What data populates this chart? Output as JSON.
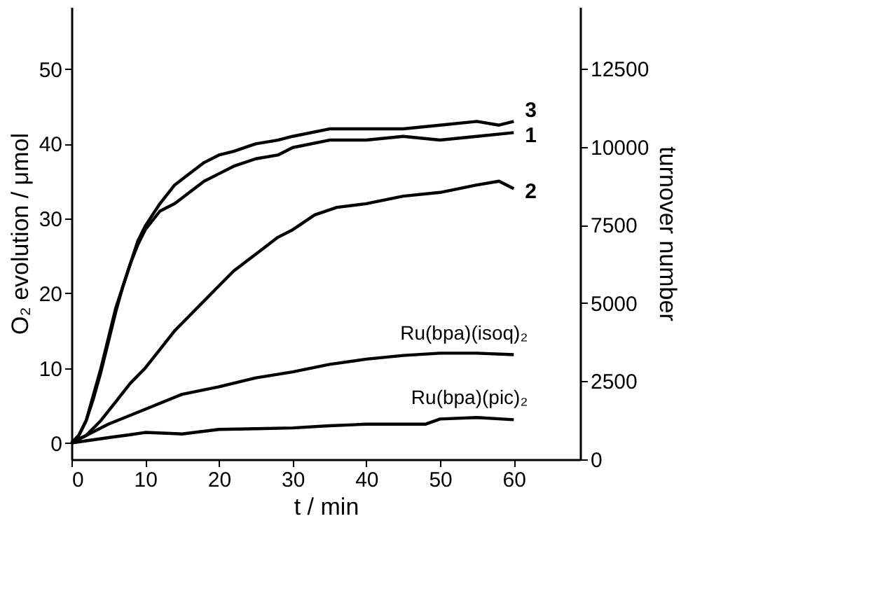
{
  "chart_data": {
    "type": "line",
    "xlabel": "t / min",
    "ylabel": "O₂ evolution / μmol",
    "y2label": "turnover number",
    "xlim": [
      0,
      69
    ],
    "xticks": [
      0,
      10,
      20,
      30,
      40,
      50,
      60
    ],
    "ylim": [
      -2.2,
      58.3
    ],
    "yticks": [
      0,
      10,
      20,
      30,
      40,
      50
    ],
    "y2lim": [
      0,
      14480
    ],
    "y2ticks": [
      0,
      2500,
      5000,
      7500,
      10000,
      12500
    ],
    "grid": false,
    "legend": false,
    "marker": "none",
    "line_style": "solid",
    "series": [
      {
        "name": "3",
        "color": "#000000",
        "x": [
          0,
          1,
          2,
          3,
          4,
          5,
          6,
          7,
          8,
          9,
          10,
          12,
          14,
          16,
          18,
          20,
          22,
          25,
          28,
          30,
          35,
          40,
          45,
          50,
          55,
          58,
          60
        ],
        "values": [
          0,
          1,
          3,
          6.5,
          10,
          14,
          18,
          21,
          24,
          27,
          29,
          32,
          34.5,
          36,
          37.5,
          38.5,
          39,
          40,
          40.5,
          41,
          42,
          42,
          42,
          42.5,
          43,
          42.5,
          43
        ]
      },
      {
        "name": "1",
        "color": "#000000",
        "x": [
          0,
          1,
          2,
          3,
          4,
          5,
          6,
          7,
          8,
          9,
          10,
          12,
          14,
          16,
          18,
          20,
          22,
          25,
          28,
          30,
          35,
          40,
          45,
          50,
          55,
          60
        ],
        "values": [
          0,
          1,
          3,
          6,
          9.5,
          13.5,
          17.5,
          21,
          24,
          26.5,
          28.5,
          31,
          32,
          33.5,
          35,
          36,
          37,
          38,
          38.5,
          39.5,
          40.5,
          40.5,
          41,
          40.5,
          41,
          41.5
        ]
      },
      {
        "name": "2",
        "color": "#000000",
        "x": [
          0,
          2,
          4,
          6,
          8,
          10,
          12,
          14,
          16,
          18,
          20,
          22,
          24,
          26,
          28,
          30,
          33,
          36,
          40,
          45,
          50,
          55,
          58,
          60
        ],
        "values": [
          0,
          1,
          3,
          5.5,
          8,
          10,
          12.5,
          15,
          17,
          19,
          21,
          23,
          24.5,
          26,
          27.5,
          28.5,
          30.5,
          31.5,
          32,
          33,
          33.5,
          34.5,
          35,
          34
        ]
      },
      {
        "name": "Ru(bpa)(isoq)₂",
        "color": "#000000",
        "x": [
          0,
          5,
          10,
          15,
          20,
          25,
          30,
          35,
          40,
          45,
          50,
          55,
          60
        ],
        "values": [
          0,
          2.5,
          4.5,
          6.5,
          7.5,
          8.7,
          9.5,
          10.5,
          11.2,
          11.7,
          12,
          12,
          11.8
        ]
      },
      {
        "name": "Ru(bpa)(pic)₂",
        "color": "#000000",
        "x": [
          0,
          5,
          8,
          10,
          15,
          20,
          25,
          30,
          35,
          40,
          45,
          48,
          50,
          55,
          60
        ],
        "values": [
          0,
          0.7,
          1.1,
          1.4,
          1.2,
          1.8,
          1.9,
          2,
          2.3,
          2.5,
          2.5,
          2.5,
          3.2,
          3.4,
          3.1
        ]
      }
    ]
  }
}
